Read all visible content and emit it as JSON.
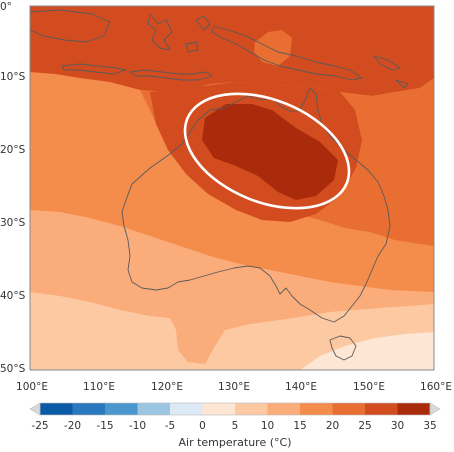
{
  "map": {
    "lat_labels": [
      "0°",
      "10°S",
      "20°S",
      "30°S",
      "40°S",
      "50°S"
    ],
    "lon_labels": [
      "100°E",
      "110°E",
      "120°E",
      "130°E",
      "140°E",
      "150°E",
      "160°E"
    ],
    "region": "Australia",
    "highlight": "ellipse around central northern Australia (hottest region)"
  },
  "colorbar": {
    "title": "Air temperature (°C)",
    "ticks": [
      "-25",
      "-20",
      "-15",
      "-10",
      "-5",
      "0",
      "5",
      "10",
      "15",
      "20",
      "25",
      "30",
      "35"
    ],
    "colors": [
      "#0b5aa6",
      "#2a78bd",
      "#4b97cd",
      "#9ac6e2",
      "#dde9f5",
      "#fde6d3",
      "#fcc9a3",
      "#fbac7b",
      "#f48c4c",
      "#e86e31",
      "#d24c1f",
      "#a92b0c"
    ]
  },
  "colors": {
    "ellipse": "#ffffff",
    "coastline": "#5a5a5a",
    "frame": "#888888"
  }
}
